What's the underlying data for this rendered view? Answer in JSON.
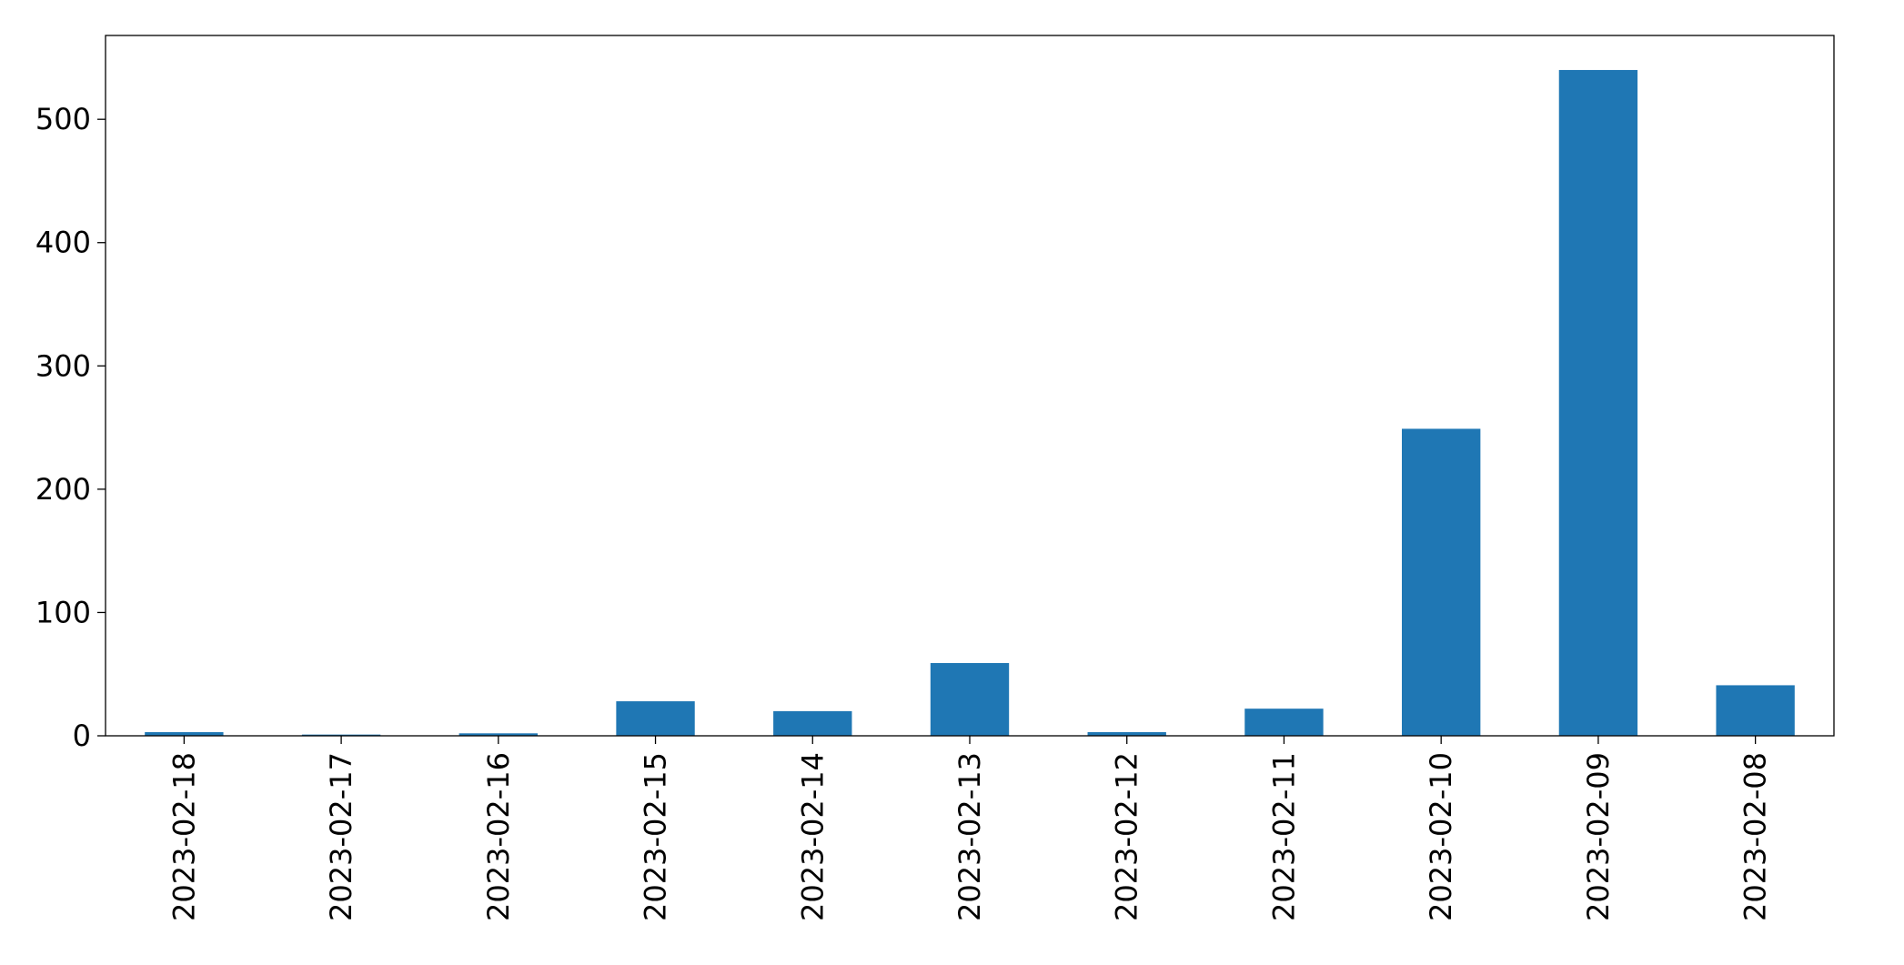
{
  "chart_data": {
    "type": "bar",
    "categories": [
      "2023-02-18",
      "2023-02-17",
      "2023-02-16",
      "2023-02-15",
      "2023-02-14",
      "2023-02-13",
      "2023-02-12",
      "2023-02-11",
      "2023-02-10",
      "2023-02-09",
      "2023-02-08"
    ],
    "values": [
      3,
      1,
      2,
      28,
      20,
      59,
      3,
      22,
      249,
      540,
      41
    ],
    "color": "#1f77b4",
    "ylim": [
      0,
      568
    ],
    "yticks": [
      0,
      100,
      200,
      300,
      400,
      500
    ],
    "grid": false
  }
}
